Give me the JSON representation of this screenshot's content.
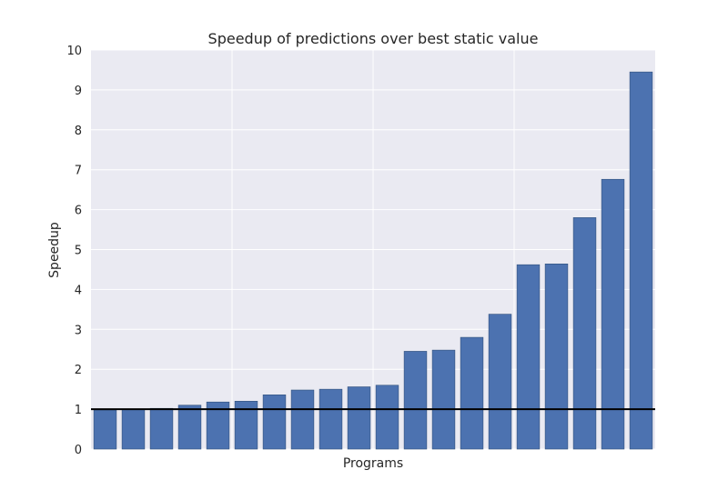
{
  "chart_data": {
    "type": "bar",
    "title": "Speedup of predictions over best static value",
    "xlabel": "Programs",
    "ylabel": "Speedup",
    "ylim": [
      0,
      10
    ],
    "yticks": [
      "0",
      "1",
      "2",
      "3",
      "4",
      "5",
      "6",
      "7",
      "8",
      "9",
      "10"
    ],
    "grid": true,
    "background_color": "#eaeaf2",
    "bar_color": "#4c72b0",
    "reference_line": {
      "y": 1,
      "color": "#000000"
    },
    "values": [
      0.98,
      1.0,
      1.02,
      1.1,
      1.18,
      1.2,
      1.36,
      1.48,
      1.5,
      1.56,
      1.6,
      2.45,
      2.48,
      2.8,
      3.38,
      4.62,
      4.64,
      5.8,
      6.76,
      9.45
    ]
  }
}
